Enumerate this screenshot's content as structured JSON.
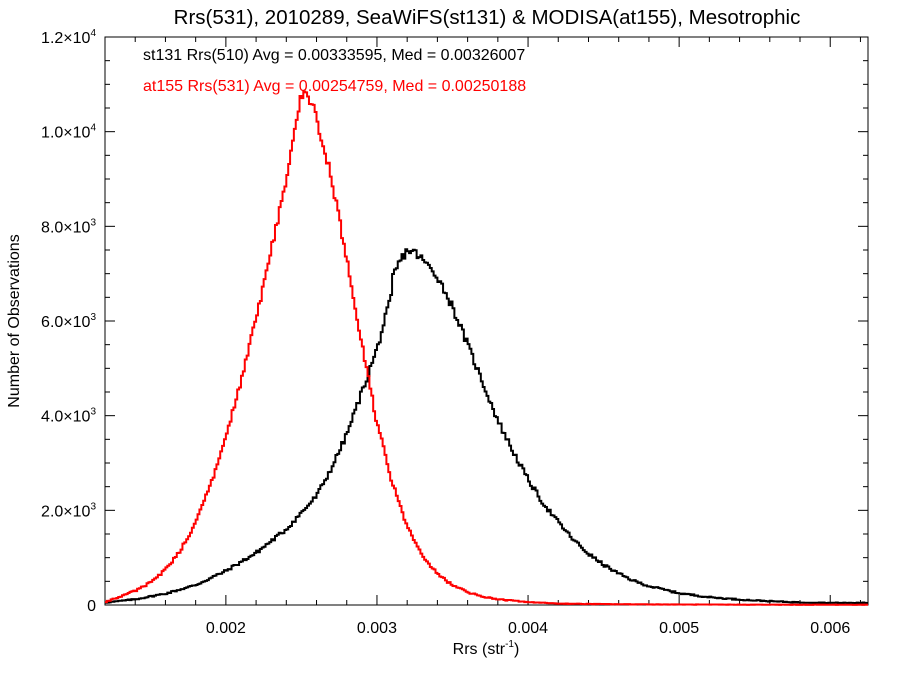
{
  "chart_data": {
    "type": "histogram",
    "title": "Rrs(531), 2010289, SeaWiFS(st131) & MODISA(at155), Mesotrophic",
    "xlabel": "Rrs (str",
    "xlabel_sup": "-1",
    "xlabel_close": ")",
    "ylabel": "Number of Observations",
    "xlim": [
      0.0012,
      0.00625
    ],
    "ylim": [
      0,
      12000
    ],
    "bin_width": 1.25e-05,
    "x_ticks": [
      {
        "value": 0.002,
        "label": "0.002"
      },
      {
        "value": 0.003,
        "label": "0.003"
      },
      {
        "value": 0.004,
        "label": "0.004"
      },
      {
        "value": 0.005,
        "label": "0.005"
      },
      {
        "value": 0.006,
        "label": "0.006"
      }
    ],
    "y_ticks": [
      {
        "value": 0,
        "label": "0",
        "sup": ""
      },
      {
        "value": 2000,
        "label": "2.0×10",
        "sup": "3"
      },
      {
        "value": 4000,
        "label": "4.0×10",
        "sup": "3"
      },
      {
        "value": 6000,
        "label": "6.0×10",
        "sup": "3"
      },
      {
        "value": 8000,
        "label": "8.0×10",
        "sup": "3"
      },
      {
        "value": 10000,
        "label": "1.0×10",
        "sup": "4"
      },
      {
        "value": 12000,
        "label": "1.2×10",
        "sup": "4"
      }
    ],
    "series": [
      {
        "label": "st131 Rrs(510) Avg = 0.00333595, Med = 0.00326007",
        "color": "#000000",
        "points": [
          [
            0.0012,
            50
          ],
          [
            0.0014,
            120
          ],
          [
            0.0016,
            240
          ],
          [
            0.0018,
            420
          ],
          [
            0.002,
            720
          ],
          [
            0.0022,
            1100
          ],
          [
            0.0024,
            1600
          ],
          [
            0.0026,
            2300
          ],
          [
            0.0027,
            2900
          ],
          [
            0.0028,
            3600
          ],
          [
            0.0029,
            4500
          ],
          [
            0.003,
            5400
          ],
          [
            0.00305,
            6000
          ],
          [
            0.0031,
            6550
          ],
          [
            0.0031,
            6900
          ],
          [
            0.00315,
            7250
          ],
          [
            0.0032,
            7500
          ],
          [
            0.00325,
            7450
          ],
          [
            0.0033,
            7300
          ],
          [
            0.0034,
            6950
          ],
          [
            0.0035,
            6300
          ],
          [
            0.0036,
            5500
          ],
          [
            0.0037,
            4700
          ],
          [
            0.0038,
            3900
          ],
          [
            0.0039,
            3250
          ],
          [
            0.004,
            2650
          ],
          [
            0.0041,
            2150
          ],
          [
            0.0042,
            1750
          ],
          [
            0.0043,
            1380
          ],
          [
            0.0044,
            1080
          ],
          [
            0.0045,
            850
          ],
          [
            0.0046,
            660
          ],
          [
            0.0047,
            510
          ],
          [
            0.0048,
            400
          ],
          [
            0.005,
            250
          ],
          [
            0.0052,
            165
          ],
          [
            0.0054,
            115
          ],
          [
            0.0056,
            80
          ],
          [
            0.0058,
            55
          ],
          [
            0.006,
            45
          ],
          [
            0.00625,
            45
          ]
        ]
      },
      {
        "label": "at155 Rrs(531) Avg = 0.00254759, Med = 0.00250188",
        "color": "#ff0000",
        "points": [
          [
            0.0012,
            60
          ],
          [
            0.0013,
            180
          ],
          [
            0.0014,
            300
          ],
          [
            0.0015,
            470
          ],
          [
            0.0016,
            750
          ],
          [
            0.0017,
            1150
          ],
          [
            0.0018,
            1750
          ],
          [
            0.0019,
            2550
          ],
          [
            0.002,
            3550
          ],
          [
            0.0021,
            4700
          ],
          [
            0.0022,
            6050
          ],
          [
            0.0023,
            7500
          ],
          [
            0.0024,
            8950
          ],
          [
            0.00245,
            10000
          ],
          [
            0.0025,
            10800
          ],
          [
            0.00255,
            10750
          ],
          [
            0.0026,
            10300
          ],
          [
            0.0027,
            9000
          ],
          [
            0.0028,
            7300
          ],
          [
            0.0029,
            5500
          ],
          [
            0.003,
            3850
          ],
          [
            0.0031,
            2600
          ],
          [
            0.0032,
            1650
          ],
          [
            0.0033,
            1050
          ],
          [
            0.0034,
            650
          ],
          [
            0.0035,
            420
          ],
          [
            0.0036,
            270
          ],
          [
            0.0037,
            180
          ],
          [
            0.0038,
            120
          ],
          [
            0.004,
            60
          ],
          [
            0.0042,
            30
          ],
          [
            0.0045,
            18
          ],
          [
            0.005,
            10
          ],
          [
            0.0055,
            6
          ],
          [
            0.00625,
            5
          ]
        ]
      }
    ]
  }
}
